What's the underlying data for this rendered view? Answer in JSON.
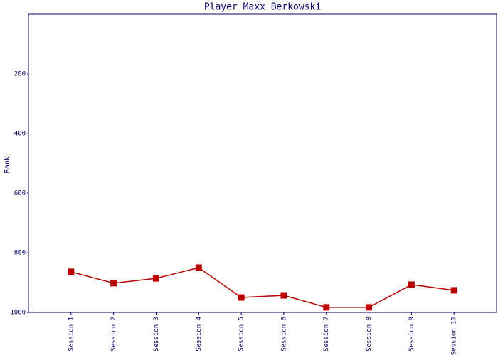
{
  "chart_data": {
    "type": "line",
    "title": "Player Maxx Berkowski",
    "y_label": "Rank",
    "categories": [
      "Session 1",
      "Session 2",
      "Session 3",
      "Session 4",
      "Session 5",
      "Session 6",
      "Session 7",
      "Session 8",
      "Session 9",
      "Session 10"
    ],
    "series": [
      {
        "name": "Rank",
        "color": "#b80000",
        "values": [
          864,
          902,
          886,
          850,
          950,
          943,
          983,
          983,
          907,
          926
        ]
      }
    ],
    "ylim": [
      1000,
      0
    ],
    "yticks": [
      200,
      400,
      600,
      800,
      1000
    ],
    "grid": false
  }
}
